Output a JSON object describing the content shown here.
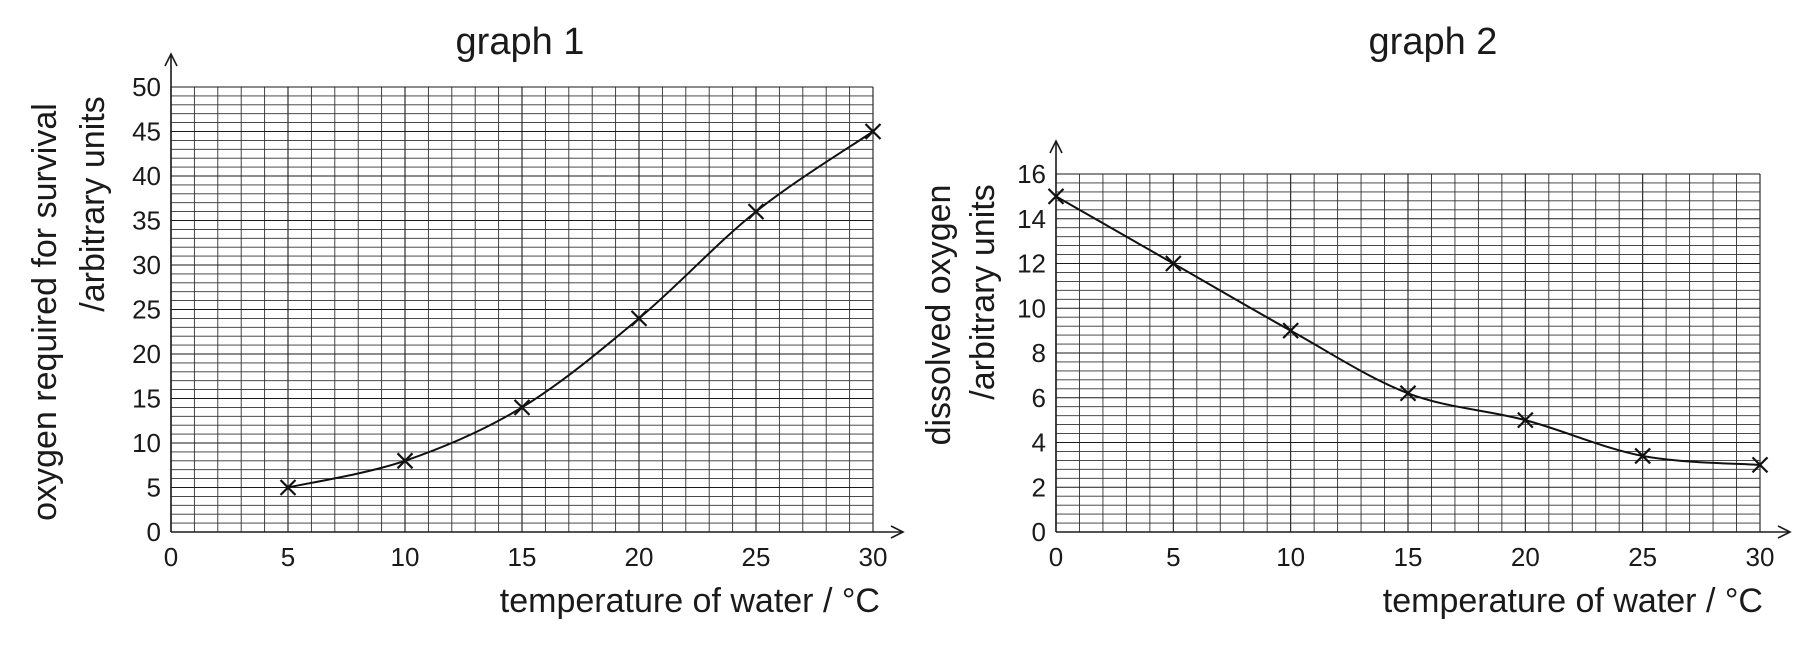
{
  "chart_data": [
    {
      "type": "line",
      "title": "graph 1",
      "xlabel": "temperature of water / °C",
      "ylabel_lines": [
        "oxygen required for survival",
        "/arbitrary units"
      ],
      "xlim": [
        0,
        30
      ],
      "ylim": [
        0,
        50
      ],
      "xticks": [
        0,
        5,
        10,
        15,
        20,
        25,
        30
      ],
      "yticks": [
        0,
        5,
        10,
        15,
        20,
        25,
        30,
        35,
        40,
        45,
        50
      ],
      "x_minor_step": 1,
      "y_minor_step": 1,
      "grid": true,
      "marker": "cross",
      "x": [
        5,
        10,
        15,
        20,
        25,
        30
      ],
      "y": [
        5,
        8,
        14,
        24,
        36,
        45
      ]
    },
    {
      "type": "line",
      "title": "graph 2",
      "xlabel": "temperature of water / °C",
      "ylabel_lines": [
        "dissolved oxygen",
        "/arbitrary units"
      ],
      "xlim": [
        0,
        30
      ],
      "ylim": [
        0,
        16
      ],
      "xticks": [
        0,
        5,
        10,
        15,
        20,
        25,
        30
      ],
      "yticks": [
        0,
        2,
        4,
        6,
        8,
        10,
        12,
        14,
        16
      ],
      "x_minor_step": 1,
      "y_minor_step": 0.4,
      "grid": true,
      "marker": "cross",
      "x": [
        0,
        5,
        10,
        15,
        20,
        25,
        30
      ],
      "y": [
        15,
        12,
        9,
        6.2,
        5,
        3.4,
        3
      ]
    }
  ]
}
